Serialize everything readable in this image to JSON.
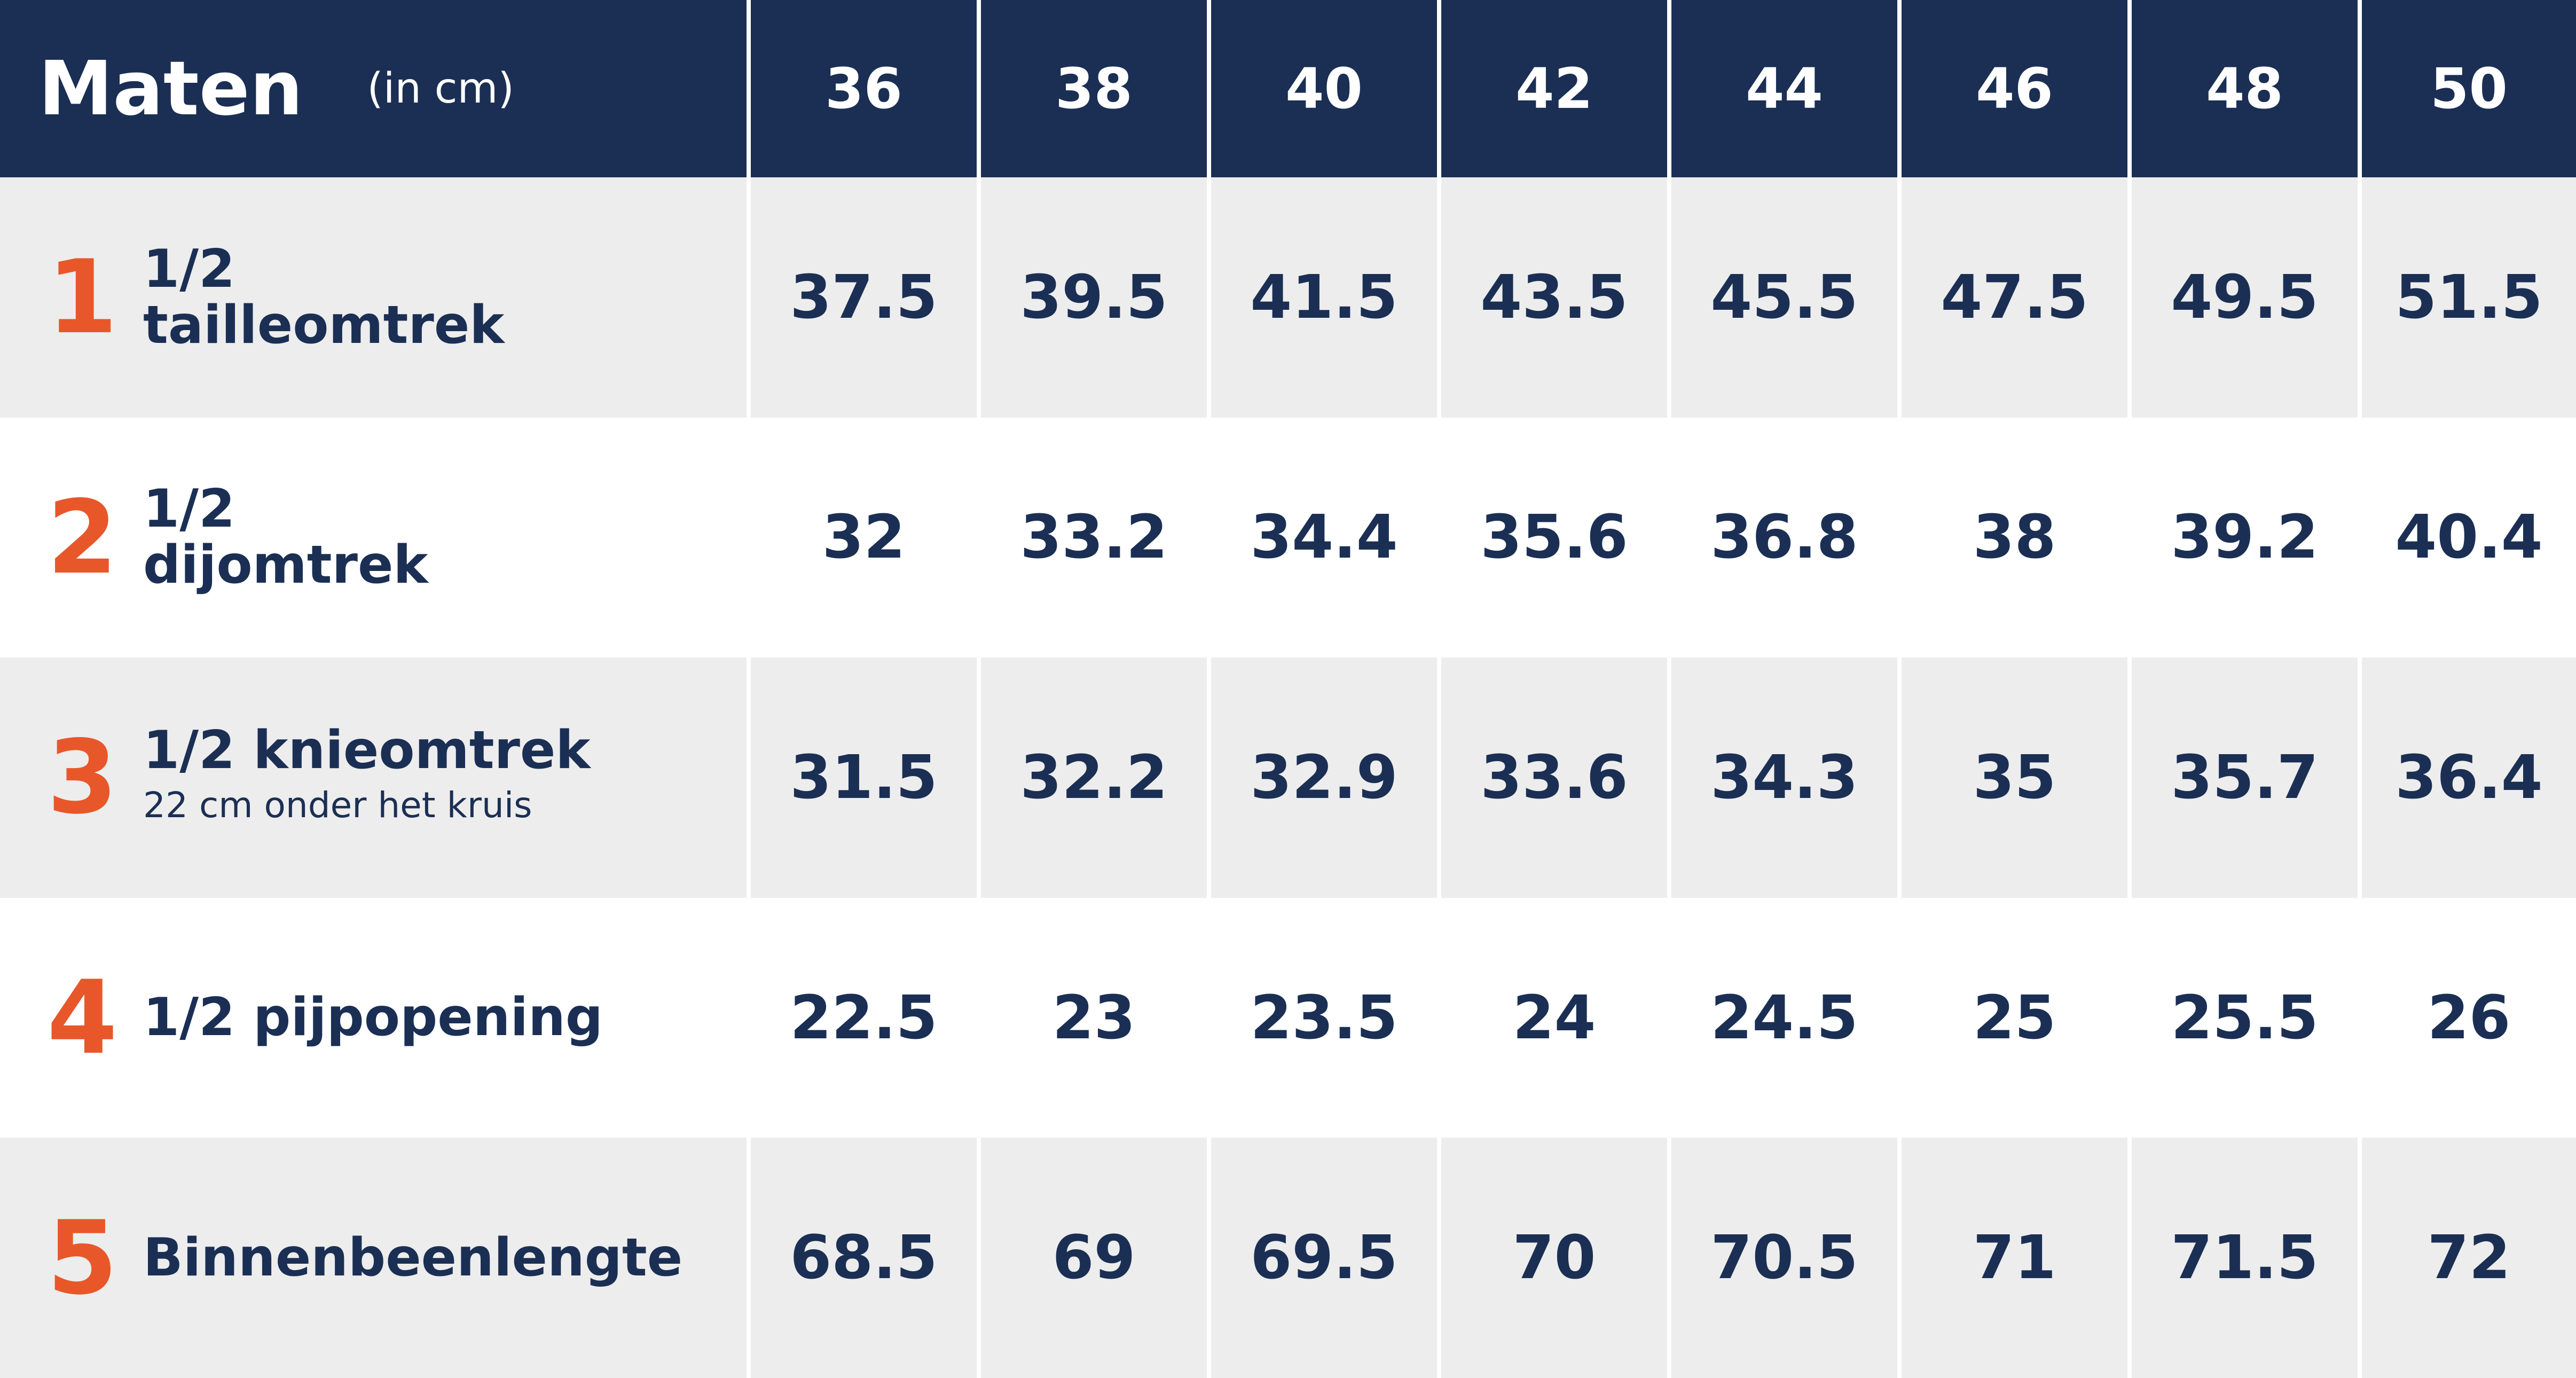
{
  "header": {
    "title": "Maten",
    "unit": "(in cm)",
    "sizes": [
      "36",
      "38",
      "40",
      "42",
      "44",
      "46",
      "48",
      "50"
    ]
  },
  "rows": [
    {
      "number": "1",
      "label": [
        "1/2",
        "tailleomtrek"
      ],
      "values": [
        37.5,
        39.5,
        41.5,
        43.5,
        45.5,
        47.5,
        49.5,
        51.5
      ]
    },
    {
      "number": "2",
      "label": [
        "1/2",
        "dijomtrek"
      ],
      "values": [
        32,
        33.2,
        34.4,
        35.6,
        36.8,
        38,
        39.2,
        40.4
      ]
    },
    {
      "number": "3",
      "label": [
        "1/2 knieomtrek"
      ],
      "sublabel": "22 cm onder het kruis",
      "values": [
        31.5,
        32.2,
        32.9,
        33.6,
        34.3,
        35,
        35.7,
        36.4
      ]
    },
    {
      "number": "4",
      "label": [
        "1/2 pijpopening"
      ],
      "values": [
        22.5,
        23,
        23.5,
        24,
        24.5,
        25,
        25.5,
        26
      ]
    },
    {
      "number": "5",
      "label": [
        "Binnenbeenlengte"
      ],
      "values": [
        68.5,
        69,
        69.5,
        70,
        70.5,
        71,
        71.5,
        72
      ]
    }
  ]
}
